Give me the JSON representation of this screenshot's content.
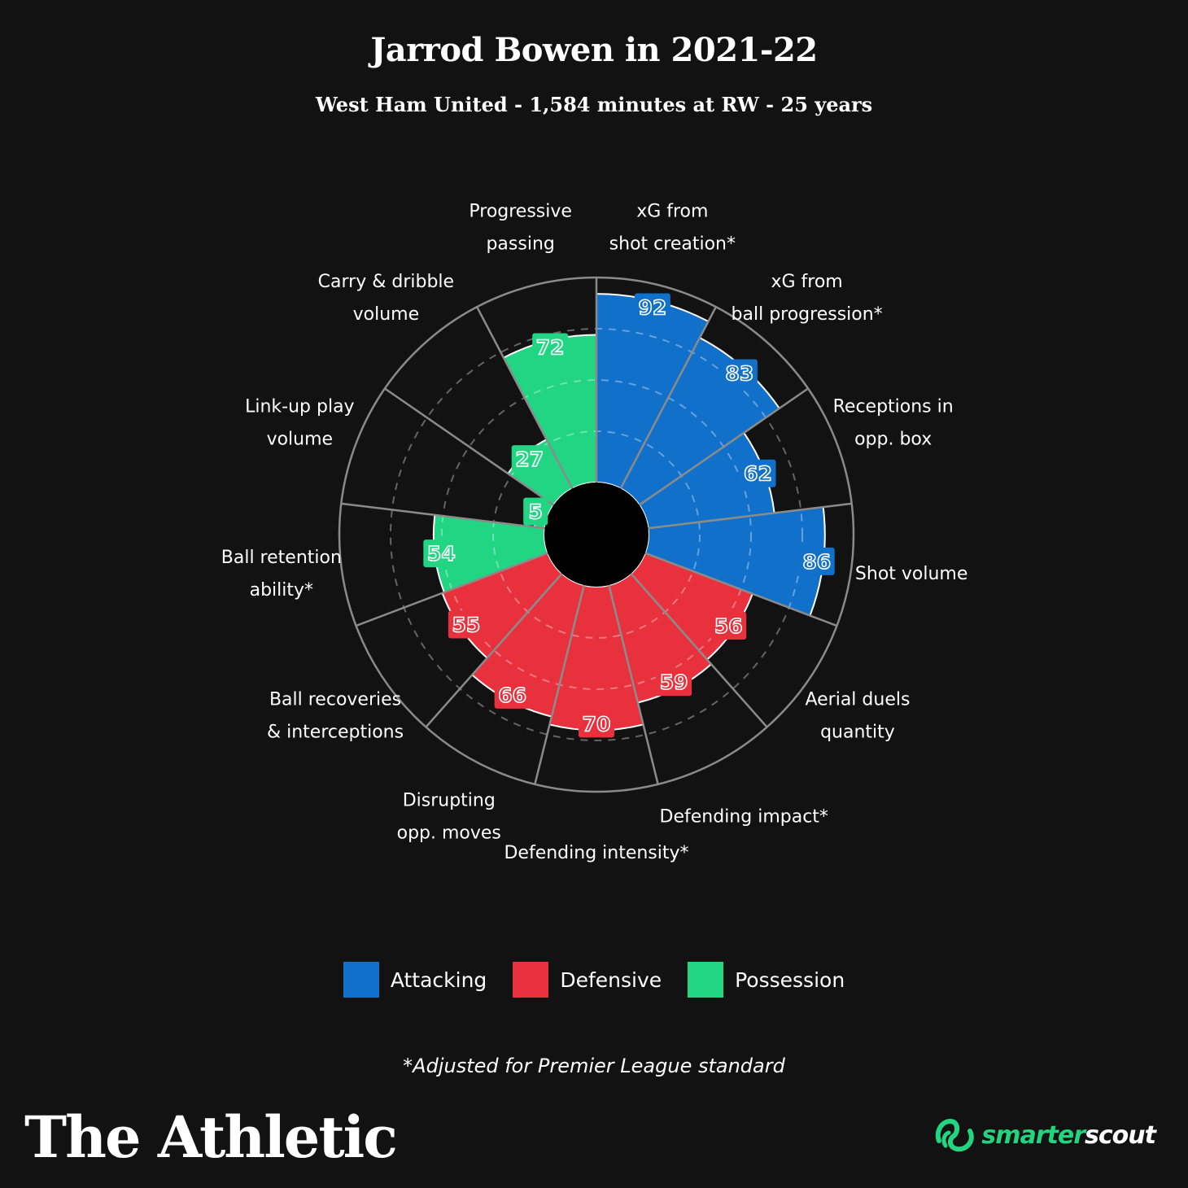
{
  "header": {
    "title": "Jarrod Bowen in 2021-22",
    "subtitle": "West Ham United - 1,584 minutes at RW - 25 years"
  },
  "colors": {
    "background": "#121212",
    "Attacking": "#1170c9",
    "Defensive": "#e9313d",
    "Possession": "#21d583"
  },
  "chart_data": {
    "type": "polar-bar",
    "title": "Jarrod Bowen in 2021-22",
    "rlim": [
      0,
      100
    ],
    "grid": true,
    "legend_position": "bottom",
    "categories": [
      {
        "label": [
          "xG from",
          "shot creation*"
        ],
        "value": 92,
        "group": "Attacking"
      },
      {
        "label": [
          "xG from",
          "ball progression*"
        ],
        "value": 83,
        "group": "Attacking"
      },
      {
        "label": [
          "Receptions in",
          "opp. box"
        ],
        "value": 62,
        "group": "Attacking"
      },
      {
        "label": [
          "Shot volume"
        ],
        "value": 86,
        "group": "Attacking"
      },
      {
        "label": [
          "Aerial duels",
          "quantity"
        ],
        "value": 56,
        "group": "Defensive"
      },
      {
        "label": [
          "Defending impact*"
        ],
        "value": 59,
        "group": "Defensive"
      },
      {
        "label": [
          "Defending intensity*"
        ],
        "value": 70,
        "group": "Defensive"
      },
      {
        "label": [
          "Disrupting",
          "opp. moves"
        ],
        "value": 66,
        "group": "Defensive"
      },
      {
        "label": [
          "Ball recoveries",
          "& interceptions"
        ],
        "value": 55,
        "group": "Defensive"
      },
      {
        "label": [
          "Ball retention",
          "ability*"
        ],
        "value": 54,
        "group": "Possession"
      },
      {
        "label": [
          "Link-up play",
          "volume"
        ],
        "value": 5,
        "group": "Possession"
      },
      {
        "label": [
          "Carry & dribble",
          "volume"
        ],
        "value": 27,
        "group": "Possession"
      },
      {
        "label": [
          "Progressive",
          "passing"
        ],
        "value": 72,
        "group": "Possession"
      }
    ]
  },
  "legend": [
    {
      "label": "Attacking",
      "color": "#1170c9"
    },
    {
      "label": "Defensive",
      "color": "#e9313d"
    },
    {
      "label": "Possession",
      "color": "#21d583"
    }
  ],
  "footnote": "*Adjusted for Premier League standard",
  "branding": {
    "left": "The Athletic",
    "right_a": "smarter",
    "right_b": "scout"
  }
}
